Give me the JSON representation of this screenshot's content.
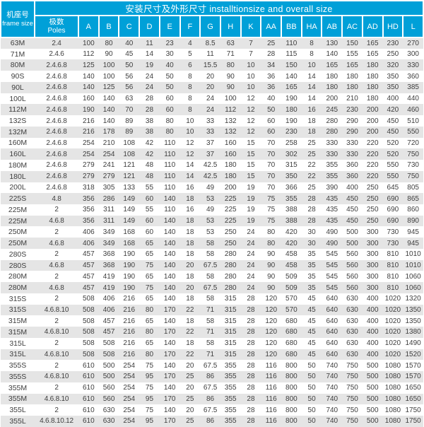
{
  "table": {
    "title": "安装尺寸及外形尺寸 installtionsize and overall size",
    "frame_header_zh": "机座号",
    "frame_header_en": "frame size",
    "poles_header_zh": "极数",
    "poles_header_en": "Poles",
    "dim_headers": [
      "A",
      "B",
      "C",
      "D",
      "E",
      "F",
      "G",
      "H",
      "K",
      "AA",
      "BB",
      "HA",
      "AB",
      "AC",
      "AD",
      "HD",
      "L"
    ],
    "rows": [
      {
        "frame": "63M",
        "poles": "2.4",
        "dims": [
          100,
          80,
          40,
          11,
          23,
          4,
          8.5,
          63,
          7,
          25,
          110,
          8,
          130,
          150,
          165,
          230,
          270
        ]
      },
      {
        "frame": "71M",
        "poles": "2.4.6",
        "dims": [
          112,
          90,
          45,
          14,
          30,
          5,
          11,
          71,
          7,
          28,
          115,
          8,
          140,
          155,
          165,
          250,
          300
        ]
      },
      {
        "frame": "80M",
        "poles": "2.4.6.8",
        "dims": [
          125,
          100,
          50,
          19,
          40,
          6,
          15.5,
          80,
          10,
          34,
          150,
          10,
          165,
          165,
          180,
          320,
          330
        ]
      },
      {
        "frame": "90S",
        "poles": "2.4.6.8",
        "dims": [
          140,
          100,
          56,
          24,
          50,
          8,
          20,
          90,
          10,
          36,
          140,
          14,
          180,
          180,
          180,
          350,
          360
        ]
      },
      {
        "frame": "90L",
        "poles": "2.4.6.8",
        "dims": [
          140,
          125,
          56,
          24,
          50,
          8,
          20,
          90,
          10,
          36,
          165,
          14,
          180,
          180,
          180,
          350,
          385
        ]
      },
      {
        "frame": "100L",
        "poles": "2.4.6.8",
        "dims": [
          160,
          140,
          63,
          28,
          60,
          8,
          24,
          100,
          12,
          40,
          190,
          14,
          200,
          210,
          180,
          400,
          440
        ]
      },
      {
        "frame": "112M",
        "poles": "2.4.6.8",
        "dims": [
          190,
          140,
          70,
          28,
          60,
          8,
          24,
          112,
          12,
          50,
          180,
          16,
          245,
          230,
          200,
          420,
          460
        ]
      },
      {
        "frame": "132S",
        "poles": "2.4.6.8",
        "dims": [
          216,
          140,
          89,
          38,
          80,
          10,
          33,
          132,
          12,
          60,
          190,
          18,
          280,
          290,
          200,
          450,
          510
        ]
      },
      {
        "frame": "132M",
        "poles": "2.4.6.8",
        "dims": [
          216,
          178,
          89,
          38,
          80,
          10,
          33,
          132,
          12,
          60,
          230,
          18,
          280,
          290,
          200,
          450,
          550
        ]
      },
      {
        "frame": "160M",
        "poles": "2.4.6.8",
        "dims": [
          254,
          210,
          108,
          42,
          110,
          12,
          37,
          160,
          15,
          70,
          258,
          25,
          330,
          330,
          220,
          520,
          720
        ]
      },
      {
        "frame": "160L",
        "poles": "2.4.6.8",
        "dims": [
          254,
          254,
          108,
          42,
          110,
          12,
          37,
          160,
          15,
          70,
          302,
          25,
          330,
          330,
          220,
          520,
          750
        ]
      },
      {
        "frame": "180M",
        "poles": "2.4.6.8",
        "dims": [
          279,
          241,
          121,
          48,
          110,
          14,
          42.5,
          180,
          15,
          70,
          315,
          22,
          355,
          360,
          220,
          550,
          730
        ]
      },
      {
        "frame": "180L",
        "poles": "2.4.6.8",
        "dims": [
          279,
          279,
          121,
          48,
          110,
          14,
          42.5,
          180,
          15,
          70,
          350,
          22,
          355,
          360,
          220,
          550,
          750
        ]
      },
      {
        "frame": "200L",
        "poles": "2.4.6.8",
        "dims": [
          318,
          305,
          133,
          55,
          110,
          16,
          49,
          200,
          19,
          70,
          366,
          25,
          390,
          400,
          250,
          645,
          805
        ]
      },
      {
        "frame": "225S",
        "poles": "4.8",
        "dims": [
          356,
          286,
          149,
          60,
          140,
          18,
          53,
          225,
          19,
          75,
          355,
          28,
          435,
          450,
          250,
          690,
          865
        ]
      },
      {
        "frame": "225M",
        "poles": "2",
        "dims": [
          356,
          311,
          149,
          55,
          110,
          16,
          49,
          225,
          19,
          75,
          388,
          28,
          435,
          450,
          250,
          690,
          860
        ]
      },
      {
        "frame": "225M",
        "poles": "4.6.8",
        "dims": [
          356,
          311,
          149,
          60,
          140,
          18,
          53,
          225,
          19,
          75,
          388,
          28,
          435,
          450,
          250,
          690,
          890
        ]
      },
      {
        "frame": "250M",
        "poles": "2",
        "dims": [
          406,
          349,
          168,
          60,
          140,
          18,
          53,
          250,
          24,
          80,
          420,
          30,
          490,
          500,
          300,
          730,
          945
        ]
      },
      {
        "frame": "250M",
        "poles": "4.6.8",
        "dims": [
          406,
          349,
          168,
          65,
          140,
          18,
          58,
          250,
          24,
          80,
          420,
          30,
          490,
          500,
          300,
          730,
          945
        ]
      },
      {
        "frame": "280S",
        "poles": "2",
        "dims": [
          457,
          368,
          190,
          65,
          140,
          18,
          58,
          280,
          24,
          90,
          458,
          35,
          545,
          560,
          300,
          810,
          1010
        ]
      },
      {
        "frame": "280S",
        "poles": "4.6.8",
        "dims": [
          457,
          368,
          190,
          75,
          140,
          20,
          67.5,
          280,
          24,
          90,
          458,
          35,
          545,
          560,
          300,
          810,
          1010
        ]
      },
      {
        "frame": "280M",
        "poles": "2",
        "dims": [
          457,
          419,
          190,
          65,
          140,
          18,
          58,
          280,
          24,
          90,
          509,
          35,
          545,
          560,
          300,
          810,
          1060
        ]
      },
      {
        "frame": "280M",
        "poles": "4.6.8",
        "dims": [
          457,
          419,
          190,
          75,
          140,
          20,
          67.5,
          280,
          24,
          90,
          509,
          35,
          545,
          560,
          300,
          810,
          1060
        ]
      },
      {
        "frame": "315S",
        "poles": "2",
        "dims": [
          508,
          406,
          216,
          65,
          140,
          18,
          58,
          315,
          28,
          120,
          570,
          45,
          640,
          630,
          400,
          1020,
          1320
        ]
      },
      {
        "frame": "315S",
        "poles": "4.6.8.10",
        "dims": [
          508,
          406,
          216,
          80,
          170,
          22,
          71,
          315,
          28,
          120,
          570,
          45,
          640,
          630,
          400,
          1020,
          1350
        ]
      },
      {
        "frame": "315M",
        "poles": "2",
        "dims": [
          508,
          457,
          216,
          65,
          140,
          18,
          58,
          315,
          28,
          120,
          680,
          45,
          640,
          630,
          400,
          1020,
          1350
        ]
      },
      {
        "frame": "315M",
        "poles": "4.6.8.10",
        "dims": [
          508,
          457,
          216,
          80,
          170,
          22,
          71,
          315,
          28,
          120,
          680,
          45,
          640,
          630,
          400,
          1020,
          1380
        ]
      },
      {
        "frame": "315L",
        "poles": "2",
        "dims": [
          508,
          508,
          216,
          65,
          140,
          18,
          58,
          315,
          28,
          120,
          680,
          45,
          640,
          630,
          400,
          1020,
          1490
        ]
      },
      {
        "frame": "315L",
        "poles": "4.6.8.10",
        "dims": [
          508,
          508,
          216,
          80,
          170,
          22,
          71,
          315,
          28,
          120,
          680,
          45,
          640,
          630,
          400,
          1020,
          1520
        ]
      },
      {
        "frame": "355S",
        "poles": "2",
        "dims": [
          610,
          500,
          254,
          75,
          140,
          20,
          67.5,
          355,
          28,
          116,
          800,
          50,
          740,
          750,
          500,
          1080,
          1570
        ]
      },
      {
        "frame": "355S",
        "poles": "4.6.8.10",
        "dims": [
          610,
          500,
          254,
          95,
          170,
          25,
          86,
          355,
          28,
          116,
          800,
          50,
          740,
          750,
          500,
          1080,
          1570
        ]
      },
      {
        "frame": "355M",
        "poles": "2",
        "dims": [
          610,
          560,
          254,
          75,
          140,
          20,
          67.5,
          355,
          28,
          116,
          800,
          50,
          740,
          750,
          500,
          1080,
          1650
        ]
      },
      {
        "frame": "355M",
        "poles": "4.6.8.10",
        "dims": [
          610,
          560,
          254,
          95,
          170,
          25,
          86,
          355,
          28,
          116,
          800,
          50,
          740,
          750,
          500,
          1080,
          1650
        ]
      },
      {
        "frame": "355L",
        "poles": "2",
        "dims": [
          610,
          630,
          254,
          75,
          140,
          20,
          67.5,
          355,
          28,
          116,
          800,
          50,
          740,
          750,
          500,
          1080,
          1750
        ]
      },
      {
        "frame": "355L",
        "poles": "4.6.8.10.12",
        "dims": [
          610,
          630,
          254,
          95,
          170,
          25,
          86,
          355,
          28,
          116,
          800,
          50,
          740,
          750,
          500,
          1080,
          1750
        ]
      }
    ]
  },
  "colors": {
    "header_bg": "#00A0D8",
    "header_text": "#FFFFFF",
    "stripe_bg": "#E5E5E5",
    "row_bg": "#FFFFFF",
    "body_text": "#3E3E3E"
  }
}
